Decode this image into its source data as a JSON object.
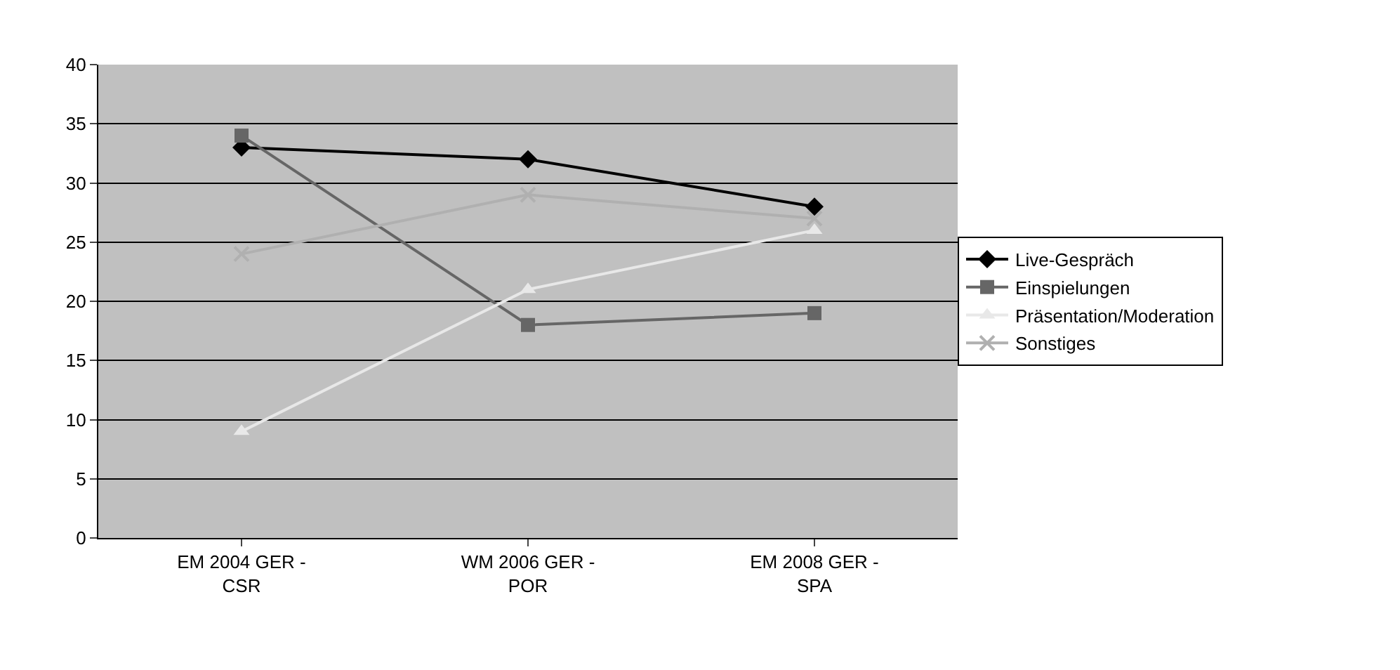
{
  "chart_data": {
    "type": "line",
    "categories": [
      "EM 2004 GER -\nCSR",
      "WM 2006 GER -\nPOR",
      "EM 2008 GER -\nSPA"
    ],
    "series": [
      {
        "name": "Live-Gespräch",
        "color": "#000000",
        "marker": "diamond",
        "values": [
          33,
          32,
          28
        ]
      },
      {
        "name": "Einspielungen",
        "color": "#666666",
        "marker": "square",
        "values": [
          34,
          18,
          19
        ]
      },
      {
        "name": "Präsentation/Moderation",
        "color": "#e8e8e8",
        "marker": "triangle",
        "values": [
          9,
          21,
          26
        ]
      },
      {
        "name": "Sonstiges",
        "color": "#b0b0b0",
        "marker": "cross",
        "values": [
          24,
          29,
          27
        ]
      }
    ],
    "ylim": [
      0,
      40
    ],
    "yticks": [
      0,
      5,
      10,
      15,
      20,
      25,
      30,
      35,
      40
    ],
    "grid": "y",
    "legend": "right",
    "line_style": "solid"
  }
}
